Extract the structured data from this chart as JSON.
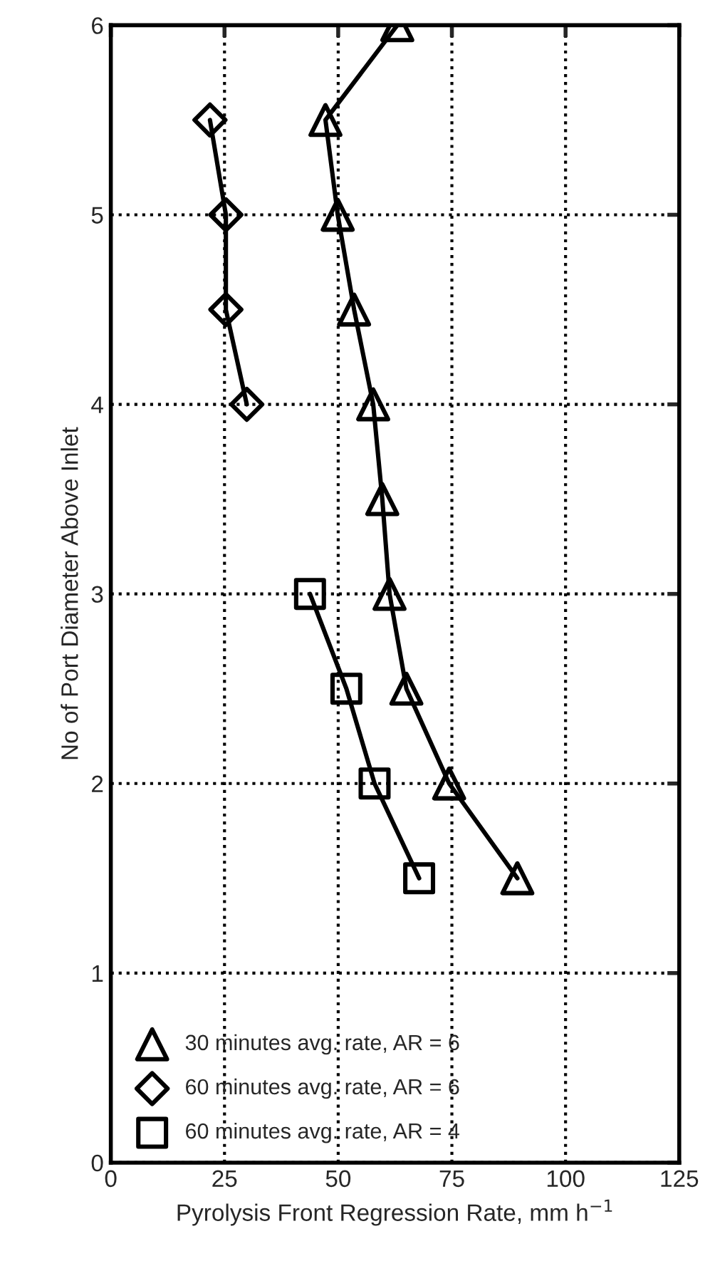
{
  "chart_data": {
    "type": "line",
    "xlabel": "Pyrolysis Front Regression Rate, mm h$^{−1}$",
    "ylabel": "No of Port Diameter Above Inlet",
    "xlim": [
      0,
      125
    ],
    "xticks": [
      0,
      25,
      50,
      75,
      100,
      125
    ],
    "ylim": [
      0,
      6
    ],
    "yticks": [
      0,
      1,
      2,
      3,
      4,
      5,
      6
    ],
    "grid": true,
    "legend": "bottom left",
    "line_style": "solid",
    "series": [
      {
        "name": "30 minutes avg. rate, AR = 6",
        "color": "#000000",
        "marker": "triangle",
        "x": [
          63,
          47.2,
          49.9,
          53.5,
          57.7,
          59.7,
          61.3,
          65,
          74.4,
          89.4
        ],
        "values": [
          6,
          5.5,
          5,
          4.5,
          4,
          3.5,
          3,
          2.5,
          2,
          1.5
        ]
      },
      {
        "name": "60 minutes avg. rate, AR = 6",
        "color": "#000000",
        "marker": "diamond",
        "x": [
          21.8,
          25.3,
          25.3,
          29.9
        ],
        "values": [
          5.5,
          5,
          4.5,
          4
        ]
      },
      {
        "name": "60 minutes avg. rate, AR = 4",
        "color": "#000000",
        "marker": "square",
        "x": [
          43.8,
          51.8,
          58,
          67.8
        ],
        "values": [
          3,
          2.5,
          2,
          1.5
        ]
      }
    ]
  }
}
